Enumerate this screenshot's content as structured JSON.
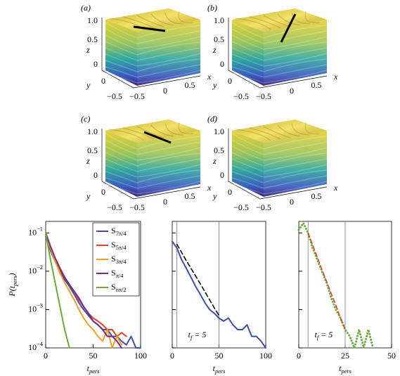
{
  "panels": [
    {
      "label": "(a)",
      "z_label": "z",
      "z_ticks": [
        "1.0",
        "0.5",
        "0"
      ],
      "y_label": "y",
      "y_ticks": [
        "0",
        "−0.5"
      ],
      "x_label": "x",
      "x_ticks": [
        "−0.5",
        "0",
        "0.5"
      ]
    },
    {
      "label": "(b)",
      "z_label": "z",
      "z_ticks": [
        "1.0",
        "0.5",
        "0"
      ],
      "y_label": "y",
      "y_ticks": [
        "0",
        "−0.5"
      ],
      "x_label": "x",
      "x_ticks": [
        "−0.5",
        "0",
        "0.5"
      ]
    },
    {
      "label": "(c)",
      "z_label": "z",
      "z_ticks": [
        "1.0",
        "0.5",
        "0"
      ],
      "y_label": "y",
      "y_ticks": [
        "0",
        "−0.5"
      ],
      "x_label": "x",
      "x_ticks": [
        "−0.5",
        "0",
        "0.5"
      ]
    },
    {
      "label": "(d)",
      "z_label": "z",
      "z_ticks": [
        "1.0",
        "0.5",
        "0"
      ],
      "y_label": "y",
      "y_ticks": [
        "0",
        "−0.5"
      ],
      "x_label": "x",
      "x_ticks": [
        "−0.5",
        "0",
        "0.5"
      ]
    }
  ],
  "chart_data": [
    {
      "type": "line",
      "x_label": "tpers",
      "y_label": "P(tpers)",
      "log_y": true,
      "legend": "upper right",
      "x": [
        0,
        5,
        10,
        15,
        20,
        25,
        30,
        35,
        40,
        45,
        50,
        55,
        60,
        65,
        70,
        75,
        80,
        85,
        90,
        95,
        100
      ],
      "xlim": [
        0,
        100
      ],
      "xticks": [
        0,
        50,
        100
      ],
      "ylim": [
        0.0001,
        0.2
      ],
      "yticks": [
        {
          "value": 0.0001,
          "label": "10−4"
        },
        {
          "value": 0.001,
          "label": "10−3"
        },
        {
          "value": 0.01,
          "label": "10−2"
        },
        {
          "value": 0.1,
          "label": "10−1"
        }
      ],
      "series": [
        {
          "name": "S7π/4",
          "color": "#3b4fa8",
          "values": [
            0.08,
            0.035,
            0.018,
            0.01,
            0.006,
            0.004,
            0.0025,
            0.0015,
            0.001,
            0.0007,
            0.0005,
            0.0004,
            0.0003,
            0.0003,
            0.0002,
            0.0002,
            0.00015,
            0.00012,
            0.0002,
            0.0001,
            0.0001
          ]
        },
        {
          "name": "S5π/4",
          "color": "#e0452b",
          "values": [
            0.09,
            0.04,
            0.02,
            0.011,
            0.007,
            0.0045,
            0.003,
            0.0018,
            0.0012,
            0.0008,
            0.0006,
            0.0005,
            0.0004,
            0.0003,
            0.0003,
            0.0002,
            0.00025,
            0.0002,
            null,
            null,
            null
          ]
        },
        {
          "name": "S3π/4",
          "color": "#f0a020",
          "values": [
            0.1,
            0.04,
            0.018,
            0.009,
            0.005,
            0.003,
            0.0018,
            0.001,
            0.0006,
            0.0004,
            0.0003,
            0.0002,
            0.00015,
            0.0003,
            0.0001,
            0.0002,
            0.00012,
            null,
            null,
            null,
            null
          ]
        },
        {
          "name": "Sπ/4",
          "color": "#7a2a80",
          "values": [
            0.1,
            0.045,
            0.022,
            0.012,
            0.007,
            0.0045,
            0.003,
            0.002,
            0.0012,
            0.0008,
            0.0005,
            0.0004,
            0.0003,
            0.0002,
            0.0002,
            0.00015,
            0.0001,
            null,
            null,
            null,
            null
          ]
        },
        {
          "name": "Snπ/2",
          "color": "#6aab3a",
          "values": [
            0.1,
            0.02,
            0.005,
            0.0012,
            0.0003,
            0.0001,
            null,
            null,
            null,
            null,
            null,
            null,
            null,
            null,
            null,
            null,
            null,
            null,
            null,
            null,
            null
          ]
        }
      ]
    },
    {
      "type": "line",
      "x_label": "tpers",
      "log_y": true,
      "annotation": "tf = 5",
      "vlines": [
        5,
        50
      ],
      "x": [
        0,
        5,
        10,
        15,
        20,
        25,
        30,
        35,
        40,
        45,
        50,
        55,
        60,
        65,
        70,
        75,
        80,
        85,
        90,
        95,
        100
      ],
      "xlim": [
        0,
        100
      ],
      "xticks": [
        0,
        50,
        100
      ],
      "ylim": [
        0.0001,
        0.2
      ],
      "yticks": [
        0.0001,
        0.001,
        0.01,
        0.1
      ],
      "series": [
        {
          "color": "#3b4fa8",
          "values": [
            0.06,
            0.04,
            0.02,
            0.012,
            0.007,
            0.004,
            0.0025,
            0.0015,
            0.001,
            0.0008,
            0.0006,
            0.0005,
            0.0006,
            0.0004,
            0.0003,
            0.0003,
            0.0004,
            0.0002,
            0.0002,
            0.00015,
            0.0001
          ]
        },
        {
          "color": "#000000",
          "dashed": true,
          "values": [
            null,
            0.05,
            0.031,
            0.019,
            0.012,
            0.0075,
            0.0047,
            0.0029,
            0.0018,
            0.0011,
            0.0007,
            null,
            null,
            null,
            null,
            null,
            null,
            null,
            null,
            null,
            null
          ]
        }
      ]
    },
    {
      "type": "line",
      "x_label": "tpers",
      "log_y": true,
      "annotation": "tf = 5",
      "vlines": [
        5,
        25
      ],
      "x": [
        0,
        2.5,
        5,
        7.5,
        10,
        12.5,
        15,
        17.5,
        20,
        22.5,
        25,
        27.5,
        30,
        32.5,
        35,
        37.5,
        40,
        42.5,
        45,
        47.5,
        50
      ],
      "xlim": [
        0,
        50
      ],
      "xticks": [
        0,
        25,
        50
      ],
      "ylim": [
        0.0001,
        0.2
      ],
      "yticks": [
        0.0001,
        0.001,
        0.01,
        0.1
      ],
      "series": [
        {
          "color": "#6aab3a",
          "dotted": true,
          "values": [
            0.12,
            0.18,
            0.1,
            0.04,
            0.02,
            0.01,
            0.005,
            0.002,
            0.001,
            0.0006,
            0.0003,
            0.0002,
            0.0001,
            0.0003,
            0.0001,
            0.0003,
            0.0001,
            null,
            0.0003,
            null,
            null
          ]
        },
        {
          "color": "#e0452b",
          "dashed": true,
          "values": [
            null,
            null,
            0.1,
            0.048,
            0.023,
            0.011,
            0.0054,
            0.0026,
            0.0013,
            0.0006,
            0.0003,
            null,
            null,
            null,
            null,
            null,
            null,
            null,
            null,
            null,
            null
          ]
        }
      ]
    }
  ]
}
